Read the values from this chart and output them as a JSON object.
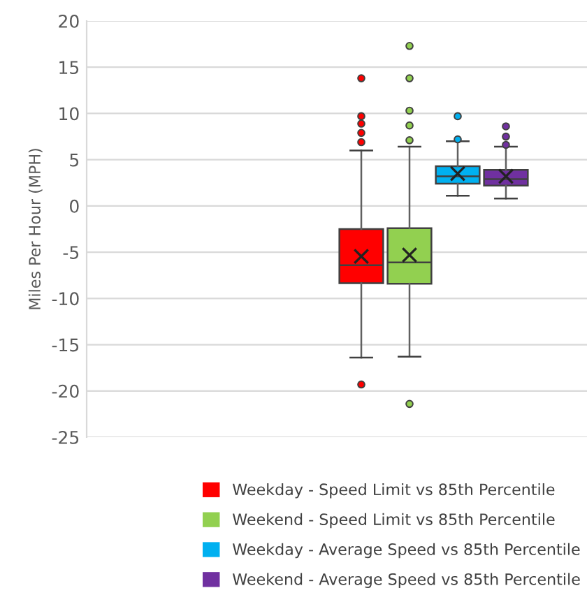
{
  "chart_data": {
    "type": "box",
    "ylabel": "Miles Per Hour (MPH)",
    "categories": [
      null
    ],
    "ylim": [
      -25,
      20
    ],
    "yticks": [
      -25,
      -20,
      -15,
      -10,
      -5,
      0,
      5,
      10,
      15,
      20
    ],
    "grid": "y",
    "legend": "bottom",
    "series": [
      {
        "name": "Weekday - Speed Limit vs 85th Percentile",
        "color": "#ff0000",
        "boxes": [
          {
            "low": -16.4,
            "q1": -8.35,
            "median": -6.4,
            "q3": -2.5,
            "high": 6.0,
            "mean": -5.45,
            "outliers": [
              13.8,
              9.7,
              8.9,
              7.9,
              6.9,
              -19.3
            ]
          }
        ]
      },
      {
        "name": "Weekend - Speed Limit vs 85th Percentile",
        "color": "#92d050",
        "boxes": [
          {
            "low": -16.3,
            "q1": -8.4,
            "median": -6.1,
            "q3": -2.4,
            "high": 6.4,
            "mean": -5.3,
            "outliers": [
              17.3,
              13.8,
              10.3,
              8.7,
              7.1,
              -21.4
            ]
          }
        ]
      },
      {
        "name": "Weekday - Average Speed vs 85th Percentile",
        "color": "#00b0f0",
        "boxes": [
          {
            "low": 1.1,
            "q1": 2.4,
            "median": 3.2,
            "q3": 4.3,
            "high": 7.0,
            "mean": 3.5,
            "outliers": [
              9.7,
              7.2
            ]
          }
        ]
      },
      {
        "name": "Weekend - Average Speed vs 85th Percentile",
        "color": "#7030a0",
        "boxes": [
          {
            "low": 0.8,
            "q1": 2.2,
            "median": 2.9,
            "q3": 3.9,
            "high": 6.4,
            "mean": 3.2,
            "outliers": [
              8.6,
              7.5,
              6.6
            ]
          }
        ]
      }
    ]
  }
}
